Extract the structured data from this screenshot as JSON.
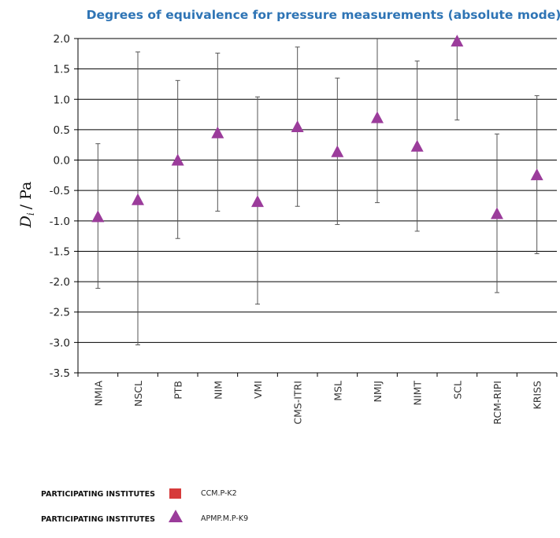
{
  "chart_data": {
    "type": "scatter",
    "title": "Degrees of equivalence for pressure measurements (absolute mode)",
    "ylabel": "D",
    "ylabel_subscript": "i",
    "ylabel_unit": "/ Pa",
    "xlabel": "",
    "ylim": [
      -3.5,
      2.0
    ],
    "yticks": [
      "2.0",
      "1.5",
      "1.0",
      "0.5",
      "0.0",
      "-0.5",
      "-1.0",
      "-1.5",
      "-2.0",
      "-2.5",
      "-3.0",
      "-3.5"
    ],
    "ytick_values": [
      2.0,
      1.5,
      1.0,
      0.5,
      0.0,
      -0.5,
      -1.0,
      -1.5,
      -2.0,
      -2.5,
      -3.0,
      -3.5
    ],
    "grid": "horizontal",
    "categories": [
      "NMIA",
      "NSCL",
      "PTB",
      "NIM",
      "VMI",
      "CMS-ITRI",
      "MSL",
      "NMIJ",
      "NIMT",
      "SCL",
      "RCM-RIPI",
      "KRISS"
    ],
    "series": [
      {
        "name": "APMP.M.P-K9",
        "marker": "triangle",
        "color": "#9b3c9b",
        "values": [
          -0.93,
          -0.65,
          0.0,
          0.45,
          -0.68,
          0.55,
          0.14,
          0.7,
          0.23,
          1.96,
          -0.88,
          -0.24
        ],
        "err_low": [
          -2.11,
          -3.04,
          -1.29,
          -0.84,
          -2.37,
          -0.76,
          -1.06,
          -0.7,
          -1.17,
          0.66,
          -2.18,
          -1.54
        ],
        "err_high": [
          0.27,
          1.78,
          1.31,
          1.76,
          1.04,
          1.86,
          1.35,
          2.1,
          1.63,
          2.05,
          0.43,
          1.06
        ]
      }
    ],
    "legend": {
      "placement": "bottom-left",
      "entries": [
        {
          "label": "PARTICIPATING INSTITUTES",
          "series": "CCM.P-K2",
          "marker": "square",
          "color": "#d63b3b"
        },
        {
          "label": "PARTICIPATING INSTITUTES",
          "series": "APMP.M.P-K9",
          "marker": "triangle",
          "color": "#9b3c9b"
        }
      ]
    }
  }
}
